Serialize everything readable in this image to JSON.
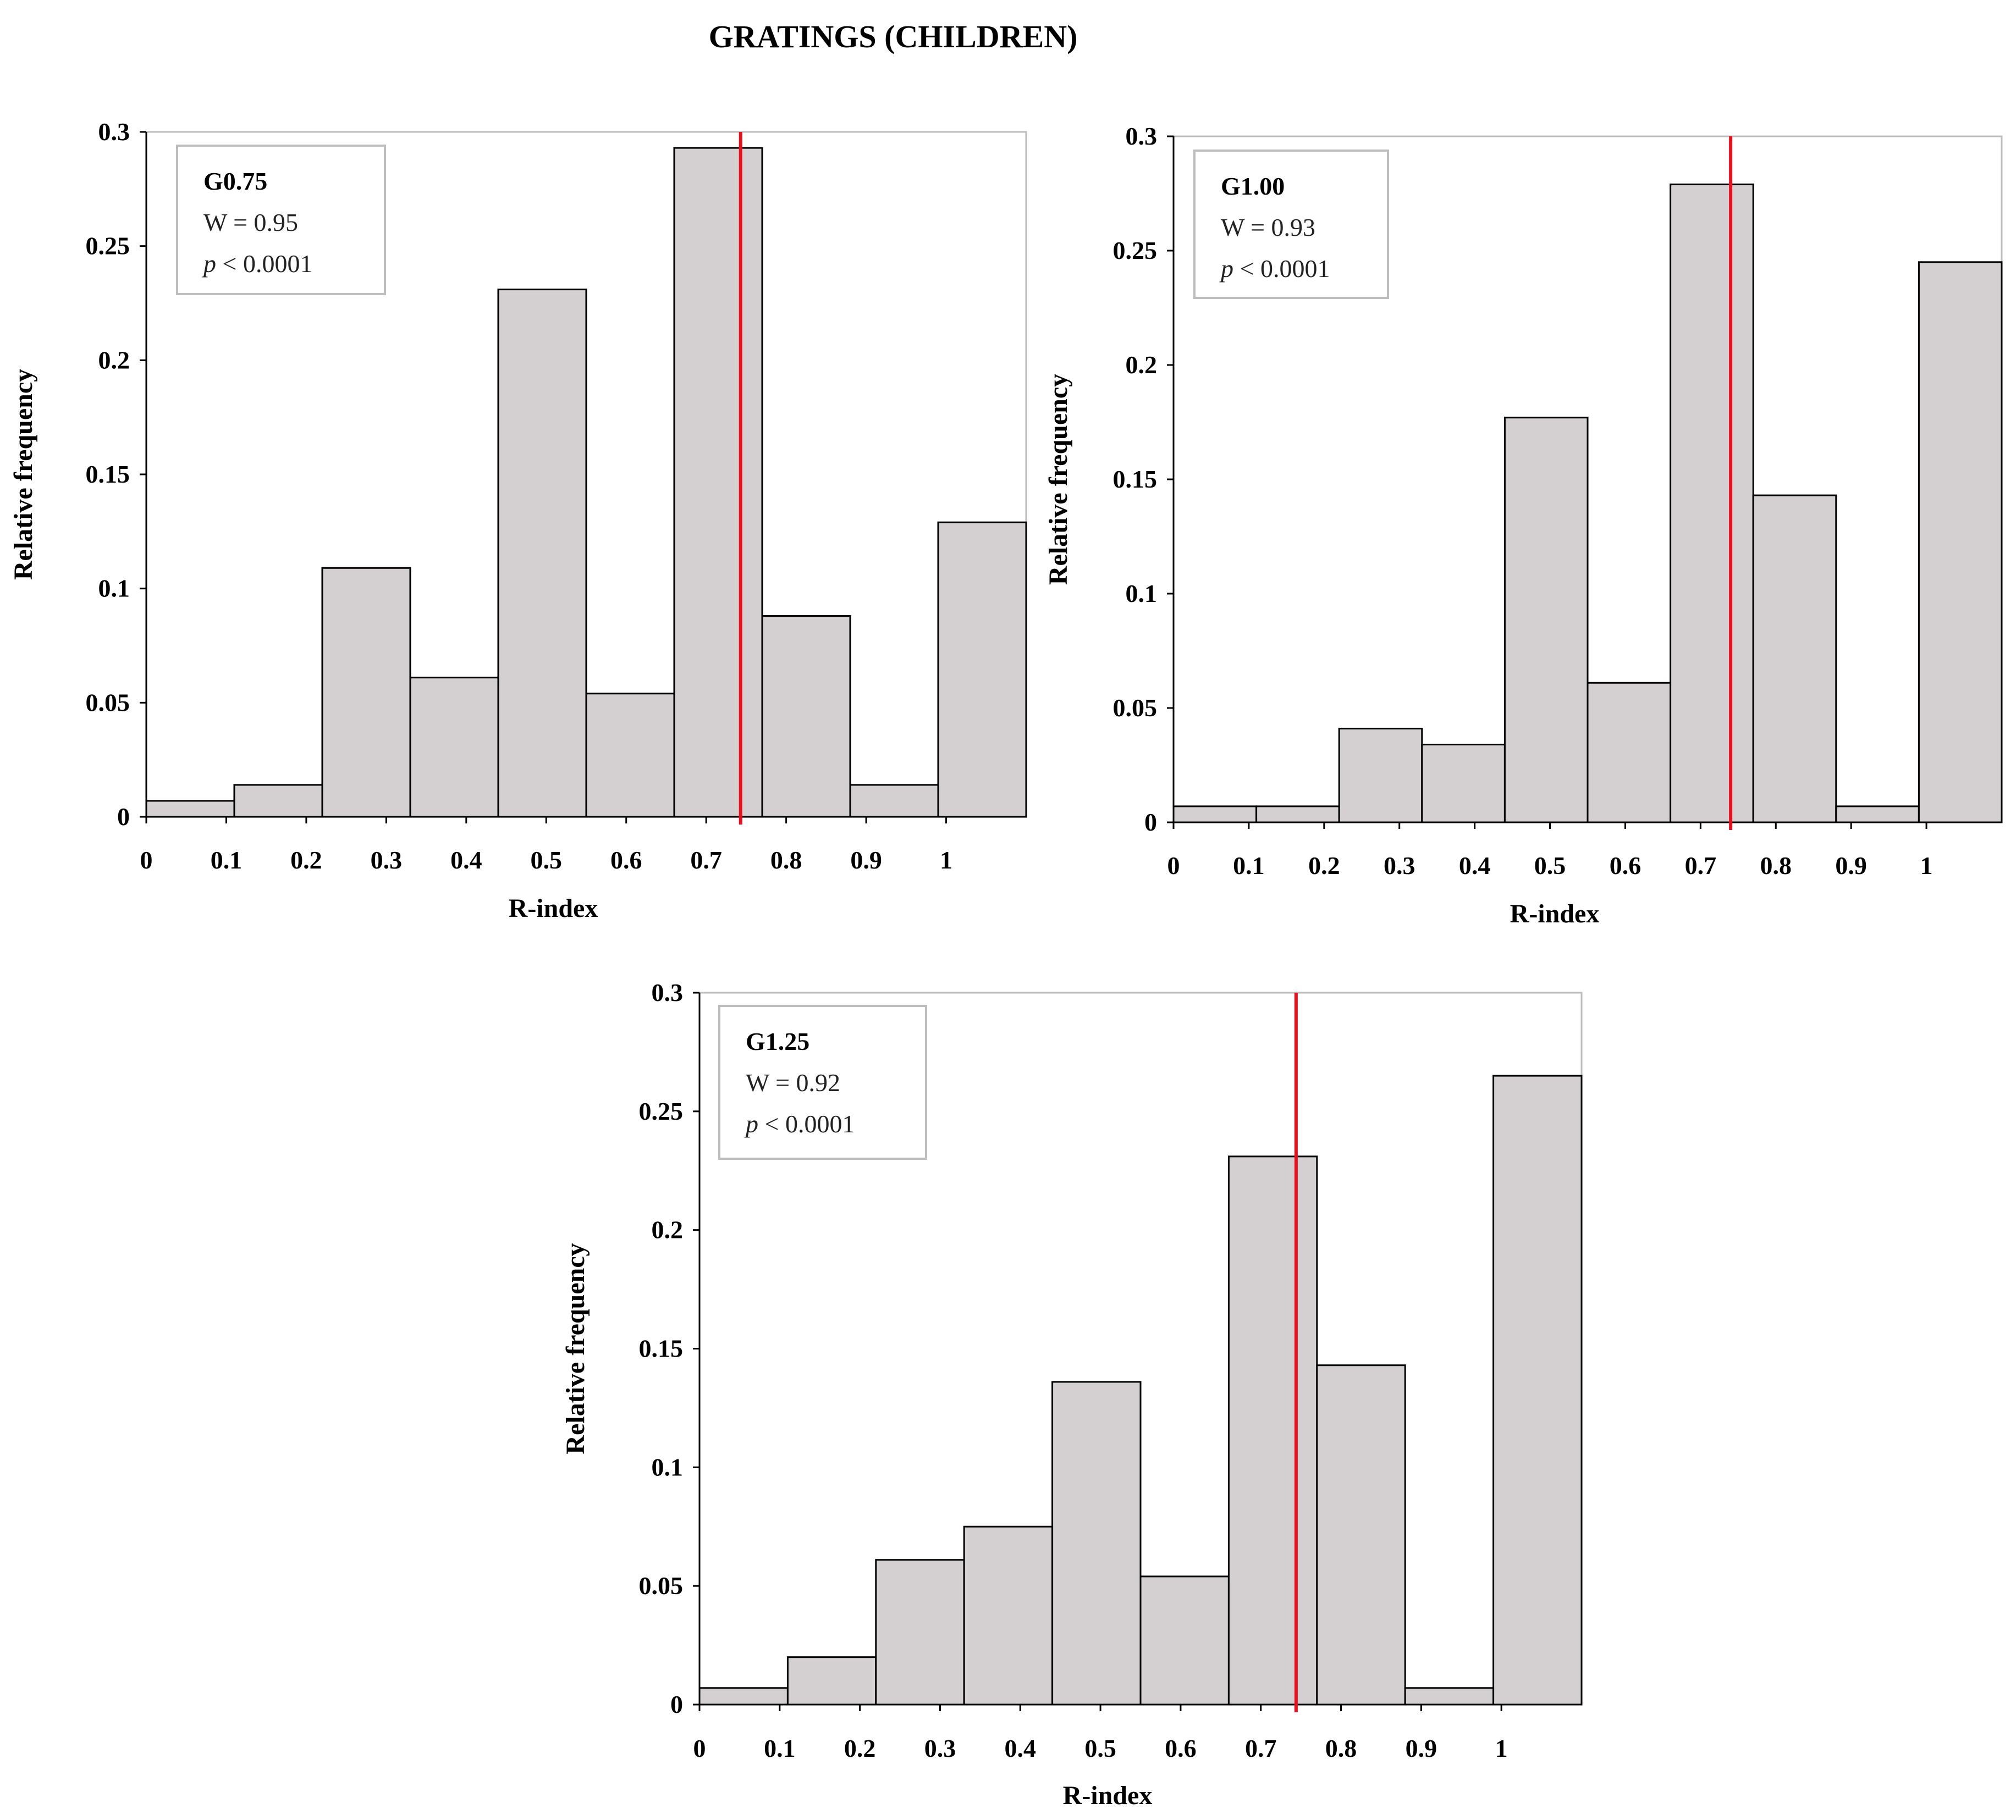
{
  "title": "GRATINGS (CHILDREN)",
  "colors": {
    "bar_fill": "#d4d0d1",
    "bar_stroke": "#000000",
    "reference_line": "#e8101c",
    "frame": "#bdbdbd"
  },
  "chart_data": [
    {
      "type": "bar",
      "label": "G0.75",
      "annotation": {
        "name": "G0.75",
        "w_text": "W = 0.95",
        "p_symbol": "p",
        "p_rest": " < 0.0001"
      },
      "xlabel": "R-index",
      "ylabel": "Relative frequency",
      "xlim": [
        0,
        1.1
      ],
      "ylim": [
        0,
        0.3
      ],
      "x_ticks": [
        0,
        0.1,
        0.2,
        0.3,
        0.4,
        0.5,
        0.6,
        0.7,
        0.8,
        0.9,
        1
      ],
      "x_tick_labels": [
        "0",
        "0.1",
        "0.2",
        "0.3",
        "0.4",
        "0.5",
        "0.6",
        "0.7",
        "0.8",
        "0.9",
        "1"
      ],
      "y_ticks": [
        0,
        0.05,
        0.1,
        0.15,
        0.2,
        0.25,
        0.3
      ],
      "y_tick_labels": [
        "0",
        "0.05",
        "0.1",
        "0.15",
        "0.2",
        "0.25",
        "0.3"
      ],
      "bin_width": 0.11,
      "bin_starts": [
        0,
        0.11,
        0.22,
        0.33,
        0.44,
        0.55,
        0.66,
        0.77,
        0.88,
        0.99
      ],
      "values": [
        0.007,
        0.014,
        0.109,
        0.061,
        0.231,
        0.054,
        0.293,
        0.088,
        0.014,
        0.129
      ],
      "reference_x": 0.743
    },
    {
      "type": "bar",
      "label": "G1.00",
      "annotation": {
        "name": "G1.00",
        "w_text": "W = 0.93",
        "p_symbol": "p",
        "p_rest": " < 0.0001"
      },
      "xlabel": "R-index",
      "ylabel": "Relative frequency",
      "xlim": [
        0,
        1.1
      ],
      "ylim": [
        0,
        0.3
      ],
      "x_ticks": [
        0,
        0.1,
        0.2,
        0.3,
        0.4,
        0.5,
        0.6,
        0.7,
        0.8,
        0.9,
        1
      ],
      "x_tick_labels": [
        "0",
        "0.1",
        "0.2",
        "0.3",
        "0.4",
        "0.5",
        "0.6",
        "0.7",
        "0.8",
        "0.9",
        "1"
      ],
      "y_ticks": [
        0,
        0.05,
        0.1,
        0.15,
        0.2,
        0.25,
        0.3
      ],
      "y_tick_labels": [
        "0",
        "0.05",
        "0.1",
        "0.15",
        "0.2",
        "0.25",
        "0.3"
      ],
      "bin_width": 0.11,
      "bin_starts": [
        0,
        0.11,
        0.22,
        0.33,
        0.44,
        0.55,
        0.66,
        0.77,
        0.88,
        0.99
      ],
      "values": [
        0.007,
        0.007,
        0.041,
        0.034,
        0.177,
        0.061,
        0.279,
        0.143,
        0.007,
        0.245
      ],
      "reference_x": 0.74
    },
    {
      "type": "bar",
      "label": "G1.25",
      "annotation": {
        "name": "G1.25",
        "w_text": "W = 0.92",
        "p_symbol": "p",
        "p_rest": " < 0.0001"
      },
      "xlabel": "R-index",
      "ylabel": "Relative frequency",
      "xlim": [
        0,
        1.1
      ],
      "ylim": [
        0,
        0.3
      ],
      "x_ticks": [
        0,
        0.1,
        0.2,
        0.3,
        0.4,
        0.5,
        0.6,
        0.7,
        0.8,
        0.9,
        1
      ],
      "x_tick_labels": [
        "0",
        "0.1",
        "0.2",
        "0.3",
        "0.4",
        "0.5",
        "0.6",
        "0.7",
        "0.8",
        "0.9",
        "1"
      ],
      "y_ticks": [
        0,
        0.05,
        0.1,
        0.15,
        0.2,
        0.25,
        0.3
      ],
      "y_tick_labels": [
        "0",
        "0.05",
        "0.1",
        "0.15",
        "0.2",
        "0.25",
        "0.3"
      ],
      "bin_width": 0.11,
      "bin_starts": [
        0,
        0.11,
        0.22,
        0.33,
        0.44,
        0.55,
        0.66,
        0.77,
        0.88,
        0.99
      ],
      "values": [
        0.007,
        0.02,
        0.061,
        0.075,
        0.136,
        0.054,
        0.231,
        0.143,
        0.007,
        0.265
      ],
      "reference_x": 0.744
    }
  ]
}
